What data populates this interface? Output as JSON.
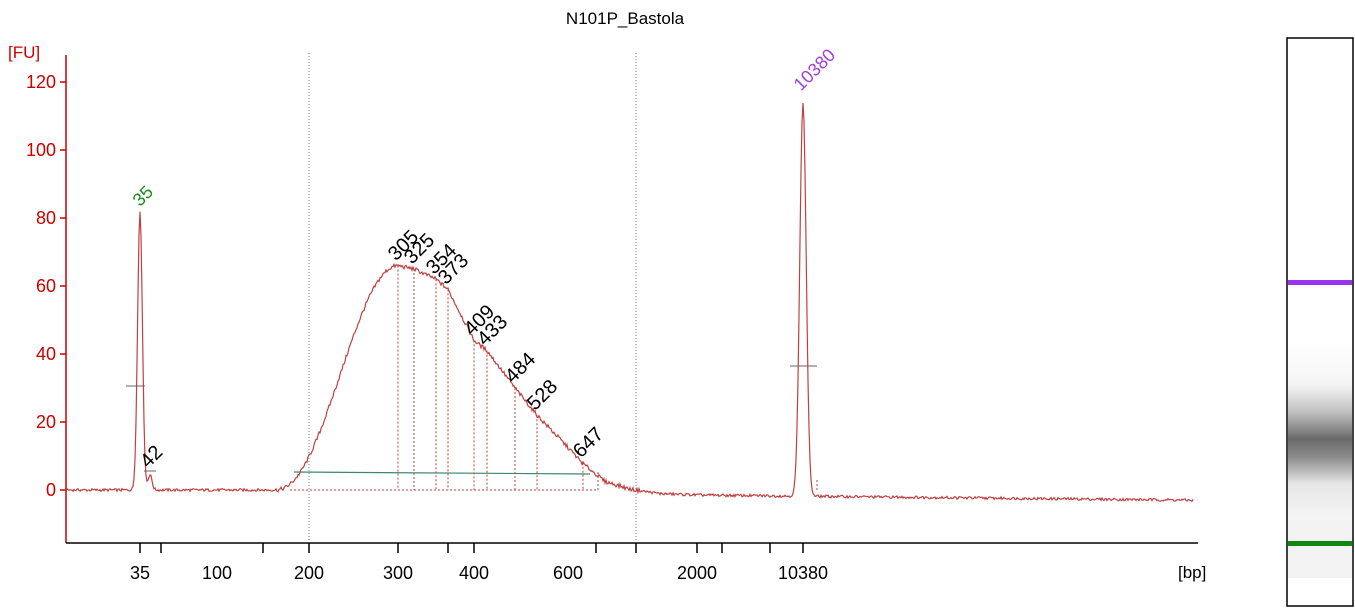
{
  "chart_data": {
    "type": "line",
    "title": "N101P_Bastola",
    "y_unit": "[FU]",
    "x_unit": "[bp]",
    "ylim": [
      -15,
      125
    ],
    "y_ticks": [
      0,
      20,
      40,
      60,
      80,
      100,
      120
    ],
    "x_tick_labels": [
      "35",
      "100",
      "200",
      "300",
      "400",
      "600",
      "2000",
      "10380"
    ],
    "grid": false,
    "colors": {
      "axis": "#cc0000",
      "trace": "#c04040",
      "marker_label": "#1a8a1a",
      "upper_marker_label": "#a040e0",
      "peak_label": "#000000",
      "gel_upper_band": "#9933ee",
      "gel_lower_band": "#118811",
      "baseline": "#3a8a6a"
    },
    "lower_marker": {
      "label": "35",
      "size_bp": 35,
      "height_fu": 82
    },
    "upper_marker": {
      "label": "10380",
      "size_bp": 10380,
      "height_fu": 116
    },
    "peaks": [
      {
        "label": "42",
        "size_bp": 42,
        "height_fu": 5
      },
      {
        "label": "305",
        "size_bp": 305,
        "height_fu": 66
      },
      {
        "label": "325",
        "size_bp": 325,
        "height_fu": 65
      },
      {
        "label": "354",
        "size_bp": 354,
        "height_fu": 62
      },
      {
        "label": "373",
        "size_bp": 373,
        "height_fu": 59
      },
      {
        "label": "409",
        "size_bp": 409,
        "height_fu": 44
      },
      {
        "label": "433",
        "size_bp": 433,
        "height_fu": 41
      },
      {
        "label": "484",
        "size_bp": 484,
        "height_fu": 30
      },
      {
        "label": "528",
        "size_bp": 528,
        "height_fu": 22
      },
      {
        "label": "647",
        "size_bp": 647,
        "height_fu": 8
      }
    ],
    "series": [
      {
        "values": [
          {
            "x_bp": 35,
            "y": 82
          },
          {
            "x_bp": 42,
            "y": 5
          },
          {
            "x_bp": 200,
            "y": 2
          },
          {
            "x_bp": 305,
            "y": 66
          },
          {
            "x_bp": 373,
            "y": 59
          },
          {
            "x_bp": 433,
            "y": 41
          },
          {
            "x_bp": 528,
            "y": 22
          },
          {
            "x_bp": 647,
            "y": 8
          },
          {
            "x_bp": 10380,
            "y": 116
          }
        ]
      }
    ]
  }
}
